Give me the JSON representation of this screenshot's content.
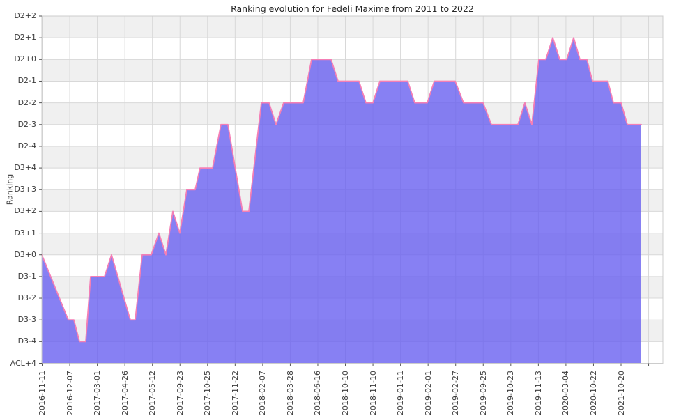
{
  "chart_data": {
    "type": "area",
    "title": "Ranking evolution for Fedeli Maxime from 2011 to 2022",
    "ylabel": "Ranking",
    "xlabel": "",
    "grid": true,
    "legend": false,
    "y_levels_top_to_bottom": [
      "D2+2",
      "D2+1",
      "D2+0",
      "D2-1",
      "D2-2",
      "D2-3",
      "D2-4",
      "D3+4",
      "D3+3",
      "D3+2",
      "D3+1",
      "D3+0",
      "D3-1",
      "D3-2",
      "D3-3",
      "D3-4",
      "ACL+4"
    ],
    "x_tick_labels": [
      "2016-11-11",
      "2016-12-07",
      "2017-03-01",
      "2017-04-26",
      "2017-05-12",
      "2017-09-23",
      "2017-10-25",
      "2017-11-22",
      "2018-02-07",
      "2018-03-28",
      "2018-06-16",
      "2018-10-10",
      "2018-11-10",
      "2019-01-11",
      "2019-02-01",
      "2019-02-27",
      "2019-09-25",
      "2019-10-23",
      "2019-11-13",
      "2020-03-04",
      "2020-10-22",
      "2021-10-20"
    ],
    "series": [
      {
        "name": "ranking-evolution",
        "points": [
          [
            60,
            "D3+0"
          ],
          [
            98,
            "D3-3"
          ],
          [
            106,
            "D3-3"
          ],
          [
            114,
            "D3-4"
          ],
          [
            123,
            "D3-4"
          ],
          [
            130,
            "D3-1"
          ],
          [
            150,
            "D3-1"
          ],
          [
            160,
            "D3+0"
          ],
          [
            187,
            "D3-3"
          ],
          [
            194,
            "D3-3"
          ],
          [
            204,
            "D3+0"
          ],
          [
            217,
            "D3+0"
          ],
          [
            228,
            "D3+1"
          ],
          [
            238,
            "D3+0"
          ],
          [
            248,
            "D3+2"
          ],
          [
            258,
            "D3+1"
          ],
          [
            268,
            "D3+3"
          ],
          [
            280,
            "D3+3"
          ],
          [
            287,
            "D3+4"
          ],
          [
            305,
            "D3+4"
          ],
          [
            317,
            "D2-3"
          ],
          [
            327,
            "D2-3"
          ],
          [
            348,
            "D3+2"
          ],
          [
            357,
            "D3+2"
          ],
          [
            375,
            "D2-2"
          ],
          [
            386,
            "D2-2"
          ],
          [
            396,
            "D2-3"
          ],
          [
            407,
            "D2-2"
          ],
          [
            435,
            "D2-2"
          ],
          [
            447,
            "D2+0"
          ],
          [
            475,
            "D2+0"
          ],
          [
            485,
            "D2-1"
          ],
          [
            515,
            "D2-1"
          ],
          [
            525,
            "D2-2"
          ],
          [
            535,
            "D2-2"
          ],
          [
            545,
            "D2-1"
          ],
          [
            585,
            "D2-1"
          ],
          [
            595,
            "D2-2"
          ],
          [
            613,
            "D2-2"
          ],
          [
            623,
            "D2-1"
          ],
          [
            653,
            "D2-1"
          ],
          [
            665,
            "D2-2"
          ],
          [
            693,
            "D2-2"
          ],
          [
            705,
            "D2-3"
          ],
          [
            743,
            "D2-3"
          ],
          [
            753,
            "D2-2"
          ],
          [
            763,
            "D2-3"
          ],
          [
            773,
            "D2+0"
          ],
          [
            783,
            "D2+0"
          ],
          [
            793,
            "D2+1"
          ],
          [
            803,
            "D2+0"
          ],
          [
            813,
            "D2+0"
          ],
          [
            823,
            "D2+1"
          ],
          [
            832,
            "D2+0"
          ],
          [
            842,
            "D2+0"
          ],
          [
            850,
            "D2-1"
          ],
          [
            872,
            "D2-1"
          ],
          [
            880,
            "D2-2"
          ],
          [
            891,
            "D2-2"
          ],
          [
            900,
            "D2-3"
          ],
          [
            920,
            "D2-3"
          ]
        ]
      }
    ],
    "colors": {
      "area_fill": "rgba(101,92,240,0.78)",
      "line": "#f47fb5",
      "band_gray": "#f0f0f0",
      "band_white": "#ffffff",
      "gridline": "#d8d8d8",
      "spine": "#cccccc",
      "tick_mark": "#555555",
      "text": "#3c3c3c",
      "title_text": "#262626"
    }
  }
}
